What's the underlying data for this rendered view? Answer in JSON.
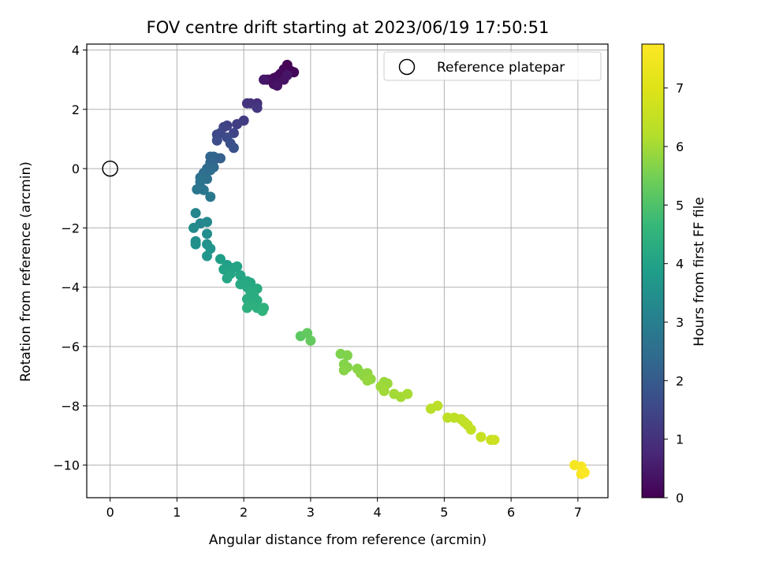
{
  "chart_data": {
    "type": "scatter",
    "title": "FOV centre drift starting at 2023/06/19 17:50:51",
    "xlabel": "Angular distance from reference (arcmin)",
    "ylabel": "Rotation from reference (arcmin)",
    "xlim": [
      -0.35,
      7.45
    ],
    "ylim": [
      -11.1,
      4.2
    ],
    "xticks": [
      0,
      1,
      2,
      3,
      4,
      5,
      6,
      7
    ],
    "yticks": [
      -10,
      -8,
      -6,
      -4,
      -2,
      0,
      2,
      4
    ],
    "grid": true,
    "legend": {
      "placement": "top-right",
      "entries": [
        "Reference platepar"
      ]
    },
    "colorbar": {
      "label": "Hours from first FF file",
      "range": [
        0,
        7.75
      ],
      "ticks": [
        0,
        1,
        2,
        3,
        4,
        5,
        6,
        7
      ],
      "colormap": "viridis"
    },
    "reference": {
      "name": "Reference platepar",
      "x": 0,
      "y": 0
    },
    "series": [
      {
        "name": "",
        "points": [
          {
            "x": 2.65,
            "y": 3.5,
            "t": 0.02
          },
          {
            "x": 2.7,
            "y": 3.3,
            "t": 0.05
          },
          {
            "x": 2.75,
            "y": 3.25,
            "t": 0.08
          },
          {
            "x": 2.6,
            "y": 3.35,
            "t": 0.1
          },
          {
            "x": 2.55,
            "y": 3.2,
            "t": 0.13
          },
          {
            "x": 2.5,
            "y": 3.1,
            "t": 0.16
          },
          {
            "x": 2.45,
            "y": 3.05,
            "t": 0.2
          },
          {
            "x": 2.4,
            "y": 3.0,
            "t": 0.22
          },
          {
            "x": 2.35,
            "y": 3.0,
            "t": 0.25
          },
          {
            "x": 2.5,
            "y": 2.9,
            "t": 0.28
          },
          {
            "x": 2.45,
            "y": 2.85,
            "t": 0.3
          },
          {
            "x": 2.6,
            "y": 3.0,
            "t": 0.33
          },
          {
            "x": 2.5,
            "y": 2.8,
            "t": 0.36
          },
          {
            "x": 2.65,
            "y": 3.15,
            "t": 0.4
          },
          {
            "x": 2.3,
            "y": 3.0,
            "t": 0.42
          },
          {
            "x": 2.2,
            "y": 2.2,
            "t": 0.95
          },
          {
            "x": 2.1,
            "y": 2.2,
            "t": 1.0
          },
          {
            "x": 2.05,
            "y": 2.2,
            "t": 1.05
          },
          {
            "x": 2.2,
            "y": 2.05,
            "t": 1.1
          },
          {
            "x": 2.0,
            "y": 1.62,
            "t": 1.25
          },
          {
            "x": 1.9,
            "y": 1.5,
            "t": 1.3
          },
          {
            "x": 1.75,
            "y": 1.45,
            "t": 1.35
          },
          {
            "x": 1.7,
            "y": 1.4,
            "t": 1.4
          },
          {
            "x": 1.85,
            "y": 1.2,
            "t": 1.45
          },
          {
            "x": 1.65,
            "y": 1.2,
            "t": 1.5
          },
          {
            "x": 1.6,
            "y": 1.15,
            "t": 1.55
          },
          {
            "x": 1.75,
            "y": 1.05,
            "t": 1.6
          },
          {
            "x": 1.6,
            "y": 0.95,
            "t": 1.65
          },
          {
            "x": 1.8,
            "y": 0.85,
            "t": 1.7
          },
          {
            "x": 1.85,
            "y": 0.7,
            "t": 1.75
          },
          {
            "x": 1.65,
            "y": 0.35,
            "t": 2.1
          },
          {
            "x": 1.6,
            "y": 0.35,
            "t": 2.15
          },
          {
            "x": 1.55,
            "y": 0.4,
            "t": 2.2
          },
          {
            "x": 1.5,
            "y": 0.4,
            "t": 2.25
          },
          {
            "x": 1.5,
            "y": 0.2,
            "t": 2.3
          },
          {
            "x": 1.55,
            "y": 0.05,
            "t": 2.35
          },
          {
            "x": 1.45,
            "y": 0.0,
            "t": 2.4
          },
          {
            "x": 1.5,
            "y": -0.05,
            "t": 2.45
          },
          {
            "x": 1.4,
            "y": -0.15,
            "t": 2.5
          },
          {
            "x": 1.35,
            "y": -0.3,
            "t": 2.55
          },
          {
            "x": 1.45,
            "y": -0.35,
            "t": 2.6
          },
          {
            "x": 1.35,
            "y": -0.45,
            "t": 2.65
          },
          {
            "x": 1.3,
            "y": -0.7,
            "t": 2.7
          },
          {
            "x": 1.4,
            "y": -0.72,
            "t": 2.75
          },
          {
            "x": 1.5,
            "y": -0.95,
            "t": 2.8
          },
          {
            "x": 1.28,
            "y": -1.5,
            "t": 3.2
          },
          {
            "x": 1.35,
            "y": -1.85,
            "t": 3.25
          },
          {
            "x": 1.45,
            "y": -1.8,
            "t": 3.3
          },
          {
            "x": 1.25,
            "y": -2.0,
            "t": 3.35
          },
          {
            "x": 1.45,
            "y": -2.2,
            "t": 3.4
          },
          {
            "x": 1.28,
            "y": -2.45,
            "t": 3.45
          },
          {
            "x": 1.28,
            "y": -2.55,
            "t": 3.5
          },
          {
            "x": 1.45,
            "y": -2.55,
            "t": 3.55
          },
          {
            "x": 1.5,
            "y": -2.7,
            "t": 3.6
          },
          {
            "x": 1.45,
            "y": -2.95,
            "t": 3.65
          },
          {
            "x": 1.65,
            "y": -3.05,
            "t": 3.9
          },
          {
            "x": 1.75,
            "y": -3.25,
            "t": 3.95
          },
          {
            "x": 1.85,
            "y": -3.35,
            "t": 4.0
          },
          {
            "x": 1.7,
            "y": -3.4,
            "t": 4.02
          },
          {
            "x": 1.9,
            "y": -3.3,
            "t": 4.05
          },
          {
            "x": 1.8,
            "y": -3.55,
            "t": 4.08
          },
          {
            "x": 1.95,
            "y": -3.6,
            "t": 4.1
          },
          {
            "x": 1.75,
            "y": -3.7,
            "t": 4.12
          },
          {
            "x": 2.05,
            "y": -3.8,
            "t": 4.15
          },
          {
            "x": 1.95,
            "y": -3.9,
            "t": 4.18
          },
          {
            "x": 2.1,
            "y": -3.85,
            "t": 4.2
          },
          {
            "x": 2.05,
            "y": -4.0,
            "t": 4.22
          },
          {
            "x": 2.2,
            "y": -4.05,
            "t": 4.25
          },
          {
            "x": 2.1,
            "y": -4.15,
            "t": 4.28
          },
          {
            "x": 2.15,
            "y": -4.3,
            "t": 4.3
          },
          {
            "x": 2.05,
            "y": -4.4,
            "t": 4.32
          },
          {
            "x": 2.2,
            "y": -4.45,
            "t": 4.35
          },
          {
            "x": 2.1,
            "y": -4.6,
            "t": 4.38
          },
          {
            "x": 2.2,
            "y": -4.7,
            "t": 4.4
          },
          {
            "x": 2.05,
            "y": -4.7,
            "t": 4.42
          },
          {
            "x": 2.3,
            "y": -4.7,
            "t": 4.45
          },
          {
            "x": 2.28,
            "y": -4.8,
            "t": 4.48
          },
          {
            "x": 2.85,
            "y": -5.65,
            "t": 5.2
          },
          {
            "x": 2.95,
            "y": -5.55,
            "t": 5.25
          },
          {
            "x": 3.0,
            "y": -5.8,
            "t": 5.3
          },
          {
            "x": 3.45,
            "y": -6.25,
            "t": 5.6
          },
          {
            "x": 3.55,
            "y": -6.3,
            "t": 5.62
          },
          {
            "x": 3.5,
            "y": -6.6,
            "t": 5.65
          },
          {
            "x": 3.55,
            "y": -6.7,
            "t": 5.68
          },
          {
            "x": 3.5,
            "y": -6.8,
            "t": 5.7
          },
          {
            "x": 3.7,
            "y": -6.75,
            "t": 5.72
          },
          {
            "x": 3.75,
            "y": -6.9,
            "t": 5.75
          },
          {
            "x": 3.8,
            "y": -7.0,
            "t": 5.78
          },
          {
            "x": 3.85,
            "y": -6.9,
            "t": 5.8
          },
          {
            "x": 3.9,
            "y": -7.1,
            "t": 5.82
          },
          {
            "x": 3.85,
            "y": -7.15,
            "t": 5.85
          },
          {
            "x": 4.1,
            "y": -7.2,
            "t": 5.9
          },
          {
            "x": 4.15,
            "y": -7.25,
            "t": 5.92
          },
          {
            "x": 4.05,
            "y": -7.35,
            "t": 5.95
          },
          {
            "x": 4.1,
            "y": -7.5,
            "t": 5.98
          },
          {
            "x": 4.25,
            "y": -7.6,
            "t": 6.0
          },
          {
            "x": 4.35,
            "y": -7.7,
            "t": 6.02
          },
          {
            "x": 4.45,
            "y": -7.6,
            "t": 6.05
          },
          {
            "x": 4.8,
            "y": -8.1,
            "t": 6.3
          },
          {
            "x": 4.9,
            "y": -8.0,
            "t": 6.32
          },
          {
            "x": 5.05,
            "y": -8.4,
            "t": 6.35
          },
          {
            "x": 5.15,
            "y": -8.4,
            "t": 6.38
          },
          {
            "x": 5.25,
            "y": -8.45,
            "t": 6.4
          },
          {
            "x": 5.3,
            "y": -8.55,
            "t": 6.42
          },
          {
            "x": 5.35,
            "y": -8.65,
            "t": 6.45
          },
          {
            "x": 5.4,
            "y": -8.8,
            "t": 6.48
          },
          {
            "x": 5.55,
            "y": -9.05,
            "t": 6.55
          },
          {
            "x": 5.7,
            "y": -9.15,
            "t": 6.6
          },
          {
            "x": 5.75,
            "y": -9.15,
            "t": 6.62
          },
          {
            "x": 6.95,
            "y": -10.0,
            "t": 7.55
          },
          {
            "x": 7.05,
            "y": -10.05,
            "t": 7.6
          },
          {
            "x": 7.05,
            "y": -10.3,
            "t": 7.65
          },
          {
            "x": 7.1,
            "y": -10.25,
            "t": 7.7
          }
        ]
      }
    ]
  }
}
